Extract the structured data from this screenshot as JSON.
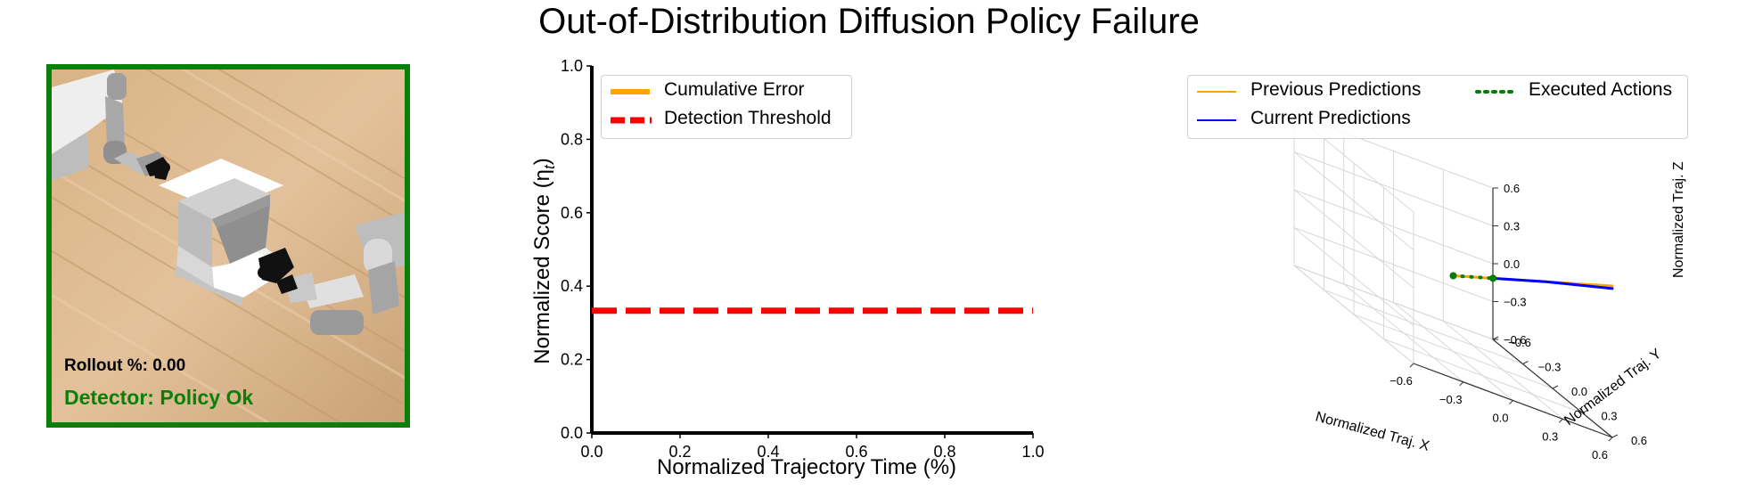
{
  "title": "Out-of-Distribution Diffusion Policy Failure",
  "scene": {
    "rollout_label": "Rollout %: 0.00",
    "detector_label": "Detector: Policy Ok",
    "border_color": "#0a7f0a"
  },
  "chart_data": [
    {
      "type": "line",
      "xlabel": "Normalized Trajectory Time (%)",
      "ylabel": "Normalized Score (η",
      "ylabel_sub": "t",
      "ylabel_close": ")",
      "xlim": [
        0.0,
        1.0
      ],
      "ylim": [
        0.0,
        1.0
      ],
      "xticks": [
        "0.0",
        "0.2",
        "0.4",
        "0.6",
        "0.8",
        "1.0"
      ],
      "yticks": [
        "0.0",
        "0.2",
        "0.4",
        "0.6",
        "0.8",
        "1.0"
      ],
      "grid": false,
      "legend_position": "upper-left",
      "series": [
        {
          "name": "Cumulative Error",
          "color": "#ffa500",
          "style": "solid",
          "x": [],
          "y": []
        },
        {
          "name": "Detection Threshold",
          "color": "#ff0000",
          "style": "dashed",
          "x": [
            0.0,
            1.0
          ],
          "y": [
            0.333,
            0.333
          ]
        }
      ]
    },
    {
      "type": "line",
      "projection": "3d",
      "xlabel": "Normalized Traj. X",
      "ylabel": "Normalized Traj. Y",
      "zlabel": "Normalized Traj. Z",
      "xlim": [
        -0.6,
        0.6
      ],
      "ylim": [
        -0.6,
        0.6
      ],
      "zlim": [
        -0.6,
        0.6
      ],
      "xticks": [
        "−0.6",
        "−0.3",
        "0.0",
        "0.3",
        "0.6"
      ],
      "yticks": [
        "−0.6",
        "−0.3",
        "0.0",
        "0.3",
        "0.6"
      ],
      "zticks": [
        "−0.6",
        "−0.3",
        "0.0",
        "0.3",
        "0.6"
      ],
      "grid": true,
      "legend_position": "upper-right",
      "series": [
        {
          "name": "Previous Predictions",
          "color": "#ffa500",
          "style": "solid",
          "points": [
            [
              0.0,
              0.0,
              0.0
            ],
            [
              0.3,
              0.3,
              0.3
            ],
            [
              0.6,
              0.6,
              0.6
            ]
          ]
        },
        {
          "name": "Current Predictions",
          "color": "#0000ff",
          "style": "solid",
          "points": [
            [
              0.15,
              0.15,
              0.15
            ],
            [
              0.35,
              0.35,
              0.35
            ],
            [
              0.6,
              0.6,
              0.58
            ]
          ]
        },
        {
          "name": "Executed Actions",
          "color": "#008000",
          "style": "dotted",
          "points": [
            [
              0.0,
              0.0,
              0.0
            ],
            [
              0.05,
              0.05,
              0.05
            ],
            [
              0.1,
              0.1,
              0.1
            ],
            [
              0.15,
              0.15,
              0.15
            ]
          ]
        }
      ]
    }
  ]
}
